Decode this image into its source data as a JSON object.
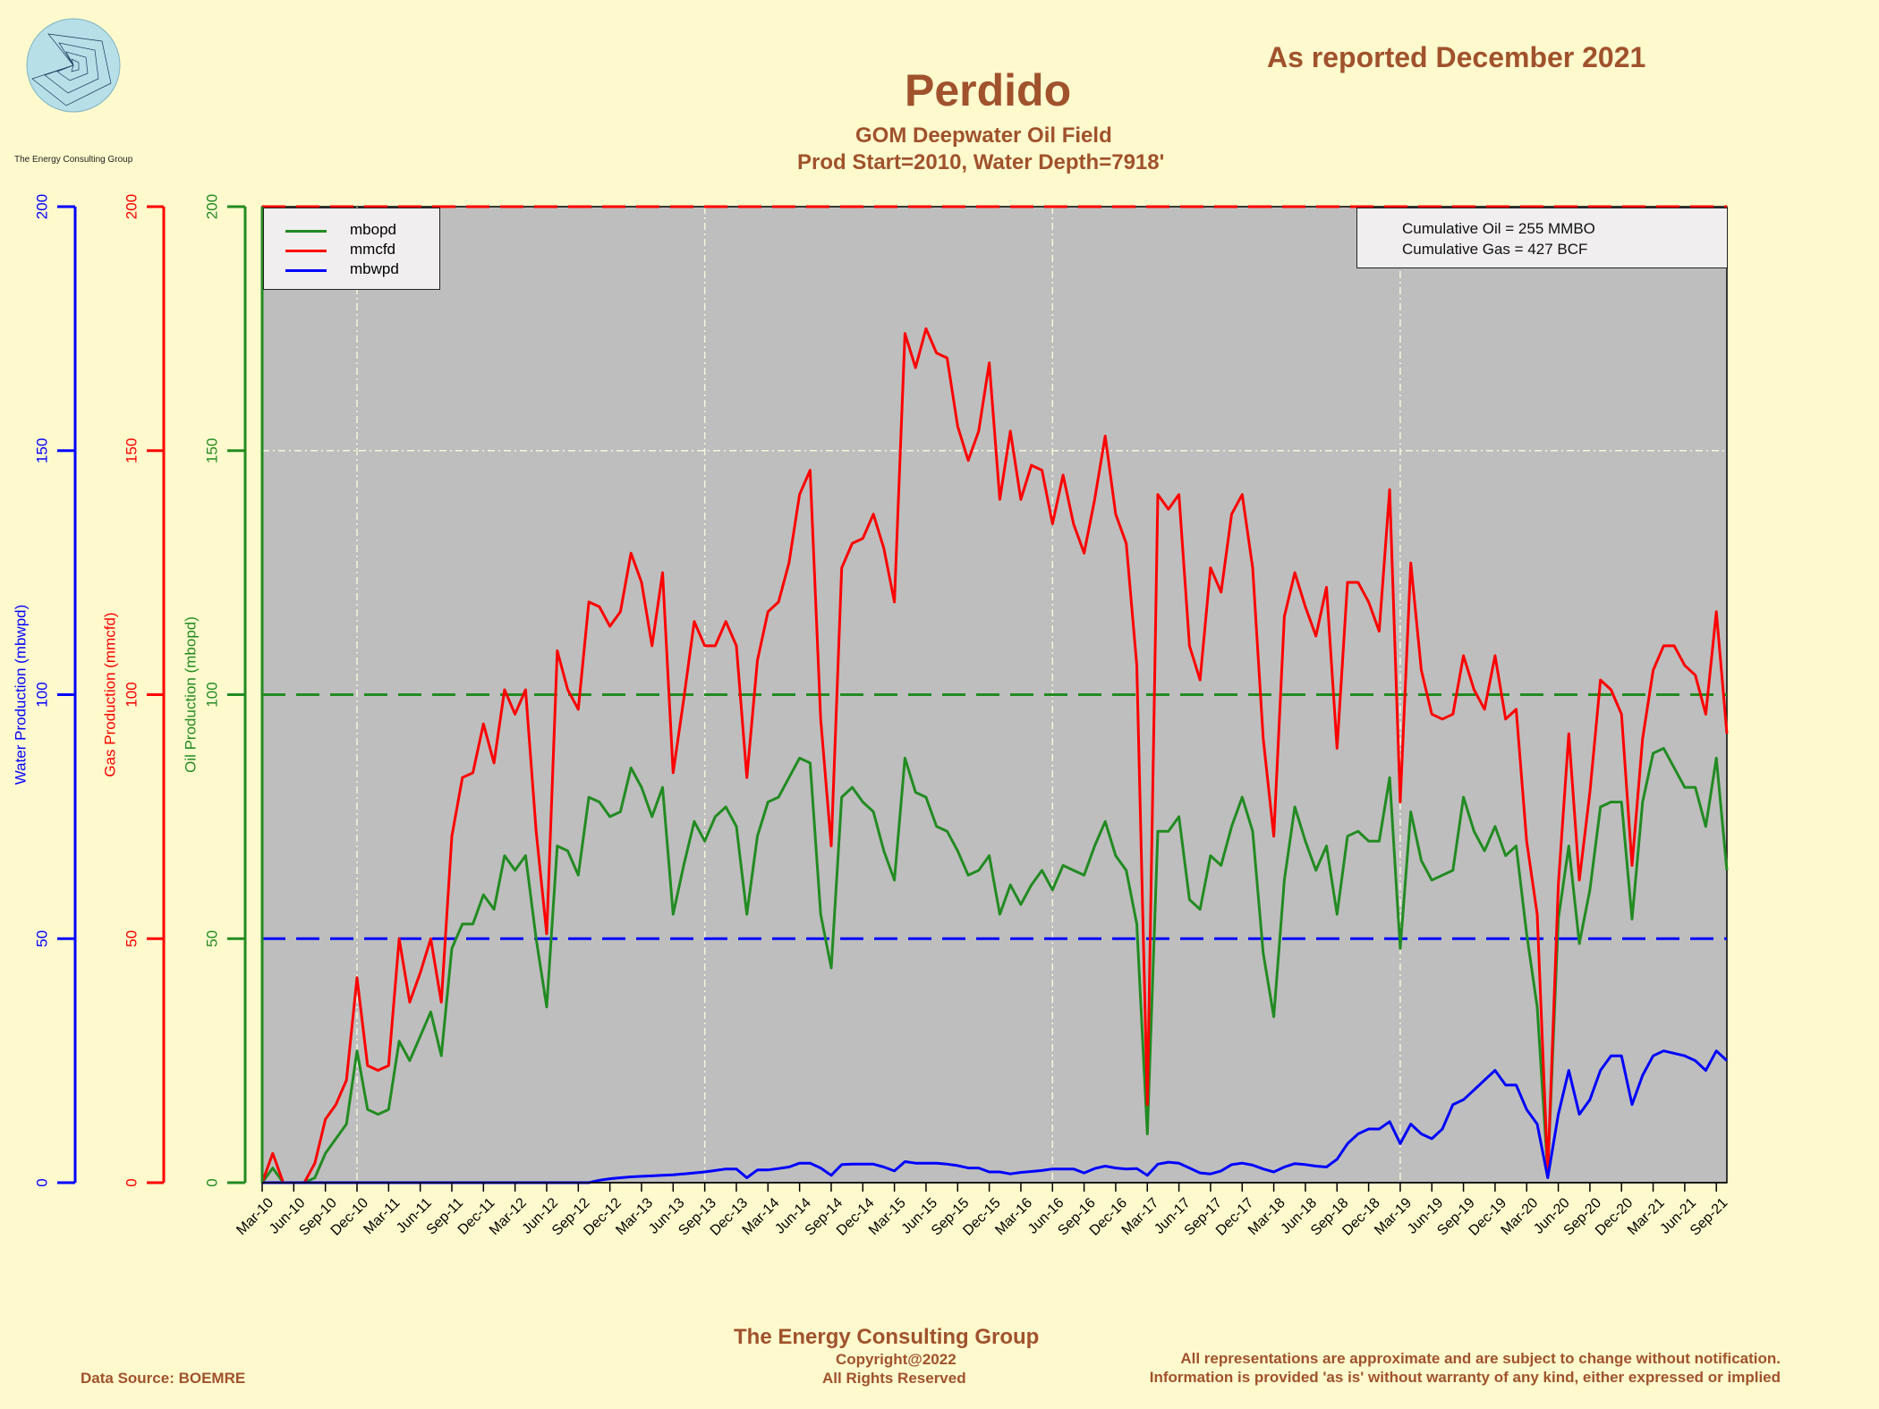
{
  "header": {
    "title": "Perdido",
    "subtitle1": "GOM Deepwater Oil Field",
    "subtitle2": "Prod Start=2010, Water Depth=7918'",
    "reported": "As reported December 2021",
    "logo_caption": "The Energy Consulting Group"
  },
  "footer": {
    "company": "The Energy Consulting Group",
    "copyright": "Copyright@2022",
    "rights": "All Rights Reserved",
    "source": "Data Source: BOEMRE",
    "disclaimer1": "All representations are approximate and are subject to change without notification.",
    "disclaimer2": "Information is provided 'as is' without warranty of any kind, either expressed or implied"
  },
  "cumulative": {
    "oil": "Cumulative Oil = 255  MMBO",
    "gas": "Cumulative Gas = 427  BCF"
  },
  "colors": {
    "background": "#fffacd",
    "plot_bg": "#bebebe",
    "oil": "#228b22",
    "gas": "#ff0000",
    "water": "#0000ff",
    "text_brown": "#a0522d"
  },
  "chart_data": {
    "type": "line",
    "title": "Perdido",
    "axes": {
      "water": {
        "label": "Water Production (mbwpd)",
        "ylim": [
          0,
          200
        ],
        "ticks": [
          "0",
          "50",
          "100",
          "150",
          "200"
        ],
        "color": "#0000ff"
      },
      "gas": {
        "label": "Gas Production (mmcfd)",
        "ylim": [
          0,
          200
        ],
        "ticks": [
          "0",
          "50",
          "100",
          "150",
          "200"
        ],
        "color": "#ff0000"
      },
      "oil": {
        "label": "Oil Production (mbopd)",
        "ylim": [
          0,
          200
        ],
        "ticks": [
          "0",
          "50",
          "100",
          "150",
          "200"
        ],
        "color": "#228b22"
      }
    },
    "x_ticks": [
      "Mar-10",
      "Jun-10",
      "Sep-10",
      "Dec-10",
      "Mar-11",
      "Jun-11",
      "Sep-11",
      "Dec-11",
      "Mar-12",
      "Jun-12",
      "Sep-12",
      "Dec-12",
      "Mar-13",
      "Jun-13",
      "Sep-13",
      "Dec-13",
      "Mar-14",
      "Jun-14",
      "Sep-14",
      "Dec-14",
      "Mar-15",
      "Jun-15",
      "Sep-15",
      "Dec-15",
      "Mar-16",
      "Jun-16",
      "Sep-16",
      "Dec-16",
      "Mar-17",
      "Jun-17",
      "Sep-17",
      "Dec-17",
      "Mar-18",
      "Jun-18",
      "Sep-18",
      "Dec-18",
      "Mar-19",
      "Jun-19",
      "Sep-19",
      "Dec-19",
      "Mar-20",
      "Jun-20",
      "Sep-20",
      "Dec-20",
      "Mar-21",
      "Jun-21",
      "Sep-21"
    ],
    "x_start": "Mar-10",
    "x_end": "Oct-21",
    "reference_lines": [
      {
        "value": 100,
        "color": "#228b22",
        "style": "dashed"
      },
      {
        "value": 50,
        "color": "#0000ff",
        "style": "dashed"
      },
      {
        "value": 200,
        "color": "#ff0000",
        "style": "dashed"
      }
    ],
    "grid_ticks": [
      "Dec-10",
      "Sep-13",
      "Jun-16",
      "Mar-19"
    ],
    "legend_position": "top-left",
    "series": [
      {
        "name": "mbopd",
        "color": "#228b22",
        "values": [
          0,
          3,
          0,
          0,
          0,
          1,
          6,
          9,
          12,
          27,
          15,
          14,
          15,
          29,
          25,
          30,
          35,
          26,
          48,
          53,
          53,
          59,
          56,
          67,
          64,
          67,
          50,
          36,
          69,
          68,
          63,
          79,
          78,
          75,
          76,
          85,
          81,
          75,
          81,
          55,
          65,
          74,
          70,
          75,
          77,
          73,
          55,
          71,
          78,
          79,
          83,
          87,
          86,
          55,
          44,
          79,
          81,
          78,
          76,
          68,
          62,
          87,
          80,
          79,
          73,
          72,
          68,
          63,
          64,
          67,
          55,
          61,
          57,
          61,
          64,
          60,
          65,
          64,
          63,
          69,
          74,
          67,
          64,
          53,
          10,
          72,
          72,
          75,
          58,
          56,
          67,
          65,
          73,
          79,
          72,
          47,
          34,
          62,
          77,
          70,
          64,
          69,
          55,
          71,
          72,
          70,
          70,
          83,
          48,
          76,
          66,
          62,
          63,
          64,
          79,
          72,
          68,
          73,
          67,
          69,
          51,
          36,
          2,
          54,
          69,
          49,
          60,
          77,
          78,
          78,
          54,
          78,
          88,
          89,
          85,
          81,
          81,
          73,
          87,
          64
        ]
      },
      {
        "name": "mmcfd",
        "color": "#ff0000",
        "values": [
          0,
          6,
          0,
          0,
          0,
          4,
          13,
          16,
          21,
          42,
          24,
          23,
          24,
          50,
          37,
          43,
          50,
          37,
          71,
          83,
          84,
          94,
          86,
          101,
          96,
          101,
          72,
          51,
          109,
          101,
          97,
          119,
          118,
          114,
          117,
          129,
          123,
          110,
          125,
          84,
          99,
          115,
          110,
          110,
          115,
          110,
          83,
          107,
          117,
          119,
          127,
          141,
          146,
          95,
          69,
          126,
          131,
          132,
          137,
          130,
          119,
          174,
          167,
          175,
          170,
          169,
          155,
          148,
          154,
          168,
          140,
          154,
          140,
          147,
          146,
          135,
          145,
          135,
          129,
          140,
          153,
          137,
          131,
          106,
          16,
          141,
          138,
          141,
          110,
          103,
          126,
          121,
          137,
          141,
          126,
          91,
          71,
          116,
          125,
          118,
          112,
          122,
          89,
          123,
          123,
          119,
          113,
          142,
          78,
          127,
          105,
          96,
          95,
          96,
          108,
          101,
          97,
          108,
          95,
          97,
          70,
          55,
          2,
          61,
          92,
          62,
          80,
          103,
          101,
          96,
          65,
          91,
          105,
          110,
          110,
          106,
          104,
          96,
          117,
          92
        ]
      },
      {
        "name": "mbwpd",
        "color": "#0000ff",
        "values": [
          0,
          0,
          0,
          0,
          0,
          0,
          0,
          0,
          0,
          0,
          0,
          0,
          0,
          0,
          0,
          0,
          0,
          0,
          0,
          0,
          0,
          0,
          0,
          0,
          0,
          0,
          0,
          0,
          0,
          0,
          0,
          0,
          0.5,
          0.8,
          1,
          1.2,
          1.3,
          1.4,
          1.5,
          1.6,
          1.8,
          2,
          2.2,
          2.5,
          2.8,
          2.8,
          1,
          2.6,
          2.6,
          2.9,
          3.2,
          4,
          4,
          3,
          1.5,
          3.7,
          3.8,
          3.8,
          3.8,
          3.2,
          2.4,
          4.3,
          4,
          4,
          4,
          3.8,
          3.5,
          3,
          3,
          2.2,
          2.2,
          1.8,
          2.1,
          2.3,
          2.5,
          2.8,
          2.8,
          2.8,
          2,
          2.9,
          3.4,
          3,
          2.8,
          2.9,
          1.5,
          3.8,
          4.2,
          4,
          3,
          2,
          1.8,
          2.4,
          3.7,
          4,
          3.6,
          2.8,
          2.2,
          3.2,
          3.9,
          3.7,
          3.4,
          3.2,
          4.8,
          8,
          10,
          11,
          11,
          12.5,
          8,
          12,
          10,
          9,
          11,
          16,
          17,
          19,
          21,
          23,
          20,
          20,
          15,
          12,
          1,
          14,
          23,
          14,
          17,
          23,
          26,
          26,
          16,
          22,
          26,
          27,
          26.5,
          26,
          25,
          23,
          27,
          25
        ]
      }
    ]
  }
}
